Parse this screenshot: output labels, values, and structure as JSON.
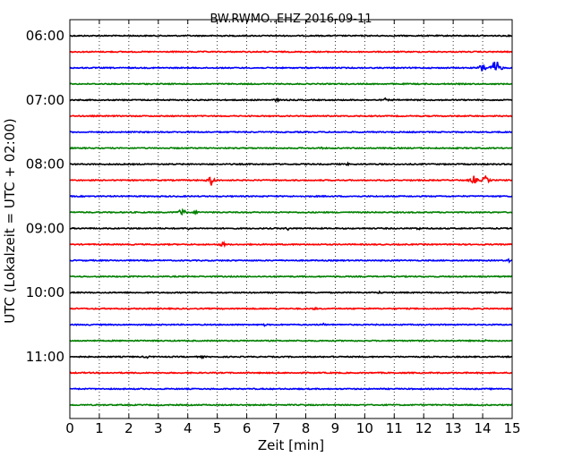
{
  "chart_data": {
    "type": "line",
    "title": "BW.RWMO..EHZ 2016-09-11",
    "xlabel": "Zeit  [min]",
    "ylabel": "UTC (Lokalzeit = UTC + 02:00)",
    "xlim": [
      0,
      15
    ],
    "x_ticks": [
      "0",
      "1",
      "2",
      "3",
      "4",
      "5",
      "6",
      "7",
      "8",
      "9",
      "10",
      "11",
      "12",
      "13",
      "14",
      "15"
    ],
    "y_ticks": [
      "06:00",
      "07:00",
      "08:00",
      "09:00",
      "10:00",
      "11:00"
    ],
    "grid": true,
    "trace_interval_minutes": 15,
    "trace_colors": [
      "#000000",
      "#ff0000",
      "#0000ff",
      "#008000"
    ],
    "series": [
      {
        "start": "06:00",
        "color": "#000000",
        "events": []
      },
      {
        "start": "06:15",
        "color": "#ff0000",
        "events": []
      },
      {
        "start": "06:30",
        "color": "#0000ff",
        "events": [
          {
            "minute": 14.0,
            "amplitude": 6
          },
          {
            "minute": 14.45,
            "amplitude": 11
          }
        ]
      },
      {
        "start": "06:45",
        "color": "#008000",
        "events": []
      },
      {
        "start": "07:00",
        "color": "#000000",
        "events": [
          {
            "minute": 7.0,
            "amplitude": 2
          },
          {
            "minute": 10.7,
            "amplitude": 2
          }
        ]
      },
      {
        "start": "07:15",
        "color": "#ff0000",
        "events": []
      },
      {
        "start": "07:30",
        "color": "#0000ff",
        "events": []
      },
      {
        "start": "07:45",
        "color": "#008000",
        "events": [
          {
            "minute": 8.5,
            "amplitude": 1.5
          }
        ]
      },
      {
        "start": "08:00",
        "color": "#000000",
        "events": [
          {
            "minute": 9.4,
            "amplitude": 1.5
          }
        ]
      },
      {
        "start": "08:15",
        "color": "#ff0000",
        "events": [
          {
            "minute": 4.8,
            "amplitude": 6
          },
          {
            "minute": 13.7,
            "amplitude": 5
          },
          {
            "minute": 14.1,
            "amplitude": 5
          }
        ]
      },
      {
        "start": "08:30",
        "color": "#0000ff",
        "events": []
      },
      {
        "start": "08:45",
        "color": "#008000",
        "events": [
          {
            "minute": 3.8,
            "amplitude": 5
          },
          {
            "minute": 4.3,
            "amplitude": 2
          }
        ]
      },
      {
        "start": "09:00",
        "color": "#000000",
        "events": [
          {
            "minute": 4.0,
            "amplitude": 2
          },
          {
            "minute": 7.4,
            "amplitude": 2
          },
          {
            "minute": 11.8,
            "amplitude": 2
          }
        ]
      },
      {
        "start": "09:15",
        "color": "#ff0000",
        "events": [
          {
            "minute": 5.2,
            "amplitude": 3
          },
          {
            "minute": 13.1,
            "amplitude": 2
          }
        ]
      },
      {
        "start": "09:30",
        "color": "#0000ff",
        "events": [
          {
            "minute": 14.9,
            "amplitude": 2
          }
        ]
      },
      {
        "start": "09:45",
        "color": "#008000",
        "events": []
      },
      {
        "start": "10:00",
        "color": "#000000",
        "events": [
          {
            "minute": 10.5,
            "amplitude": 1.5
          }
        ]
      },
      {
        "start": "10:15",
        "color": "#ff0000",
        "events": [
          {
            "minute": 8.3,
            "amplitude": 1.5
          }
        ]
      },
      {
        "start": "10:30",
        "color": "#0000ff",
        "events": [
          {
            "minute": 6.6,
            "amplitude": 1.5
          },
          {
            "minute": 8.6,
            "amplitude": 1.5
          }
        ]
      },
      {
        "start": "10:45",
        "color": "#008000",
        "events": [
          {
            "minute": 14.1,
            "amplitude": 1.5
          }
        ]
      },
      {
        "start": "11:00",
        "color": "#000000",
        "events": [
          {
            "minute": 2.6,
            "amplitude": 2
          },
          {
            "minute": 4.5,
            "amplitude": 1.5
          },
          {
            "minute": 8.9,
            "amplitude": 1.5
          }
        ]
      },
      {
        "start": "11:15",
        "color": "#ff0000",
        "events": []
      },
      {
        "start": "11:30",
        "color": "#0000ff",
        "events": []
      },
      {
        "start": "11:45",
        "color": "#008000",
        "events": []
      }
    ]
  }
}
